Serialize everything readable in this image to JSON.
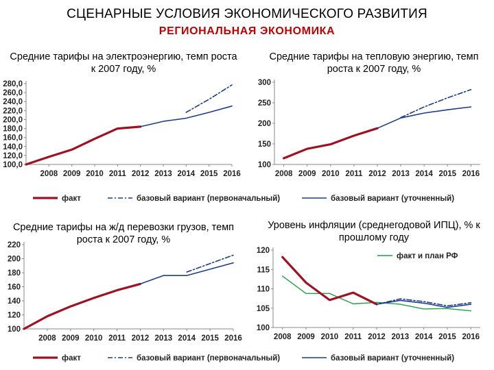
{
  "header": {
    "title": "СЦЕНАРНЫЕ УСЛОВИЯ ЭКОНОМИЧЕСКОГО РАЗВИТИЯ",
    "subtitle": "РЕГИОНАЛЬНАЯ  ЭКОНОМИКА"
  },
  "colors": {
    "fact": "#a01020",
    "base_initial": "#1a3a8c",
    "base_refined": "#1a3a8c",
    "fact_and_plan_rf": "#20a040",
    "title_red": "#c00000"
  },
  "legends": {
    "top": [
      "факт",
      "базовый вариант (первоначальный)",
      "базовый вариант (уточненный)"
    ],
    "bottom": [
      "факт",
      "базовый вариант (первоначальный)",
      "базовый вариант (уточненный)"
    ]
  },
  "chart_data": [
    {
      "id": "electricity",
      "type": "line",
      "title": "Средние тарифы на электроэнергию,  темп роста к 2007 году, %",
      "xlabel": "",
      "ylabel": "",
      "ylim": [
        100,
        280
      ],
      "yticks": [
        "100,0",
        "120,0",
        "140,0",
        "160,0",
        "180,0",
        "200,0",
        "220,0",
        "240,0",
        "260,0",
        "280,0"
      ],
      "x": [
        "2008",
        "2009",
        "2010",
        "2011",
        "2012",
        "2013",
        "2014",
        "2015",
        "2016"
      ],
      "series": [
        {
          "name": "факт",
          "style": "fact",
          "x": [
            2007,
            2008,
            2009,
            2010,
            2011,
            2012
          ],
          "values": [
            100,
            117,
            133,
            157,
            180,
            184
          ]
        },
        {
          "name": "базовый вариант (первоначальный)",
          "style": "base_initial",
          "x": [
            2014,
            2015,
            2016
          ],
          "values": [
            216,
            245,
            277
          ]
        },
        {
          "name": "базовый вариант (уточненный)",
          "style": "base_refined",
          "x": [
            2012,
            2013,
            2014,
            2015,
            2016
          ],
          "values": [
            184,
            196,
            203,
            216,
            230
          ]
        }
      ]
    },
    {
      "id": "heat",
      "type": "line",
      "title": "Средние тарифы на тепловую энергию, темп роста к 2007 году, %",
      "xlabel": "",
      "ylabel": "",
      "ylim": [
        100,
        300
      ],
      "yticks": [
        "100",
        "150",
        "200",
        "250",
        "300"
      ],
      "x": [
        "2008",
        "2009",
        "2010",
        "2011",
        "2012",
        "2013",
        "2014",
        "2015",
        "2016"
      ],
      "series": [
        {
          "name": "факт",
          "style": "fact",
          "x": [
            2008,
            2009,
            2010,
            2011,
            2012
          ],
          "values": [
            115,
            138,
            149,
            170,
            188
          ]
        },
        {
          "name": "базовый вариант (первоначальный)",
          "style": "base_initial",
          "x": [
            2013,
            2014,
            2015,
            2016
          ],
          "values": [
            214,
            240,
            262,
            282
          ]
        },
        {
          "name": "базовый вариант (уточненный)",
          "style": "base_refined",
          "x": [
            2012,
            2013,
            2014,
            2015,
            2016
          ],
          "values": [
            188,
            213,
            225,
            233,
            240
          ]
        }
      ]
    },
    {
      "id": "railway",
      "type": "line",
      "title": "Средние тарифы на ж/д перевозки грузов, темп роста к 2007 году, %",
      "xlabel": "",
      "ylabel": "",
      "ylim": [
        100,
        220
      ],
      "yticks": [
        "100",
        "120",
        "140",
        "160",
        "180",
        "200",
        "220"
      ],
      "x": [
        "2008",
        "2009",
        "2010",
        "2011",
        "2012",
        "2013",
        "2014",
        "2015",
        "2016"
      ],
      "series": [
        {
          "name": "факт",
          "style": "fact",
          "x": [
            2007,
            2008,
            2009,
            2010,
            2011,
            2012
          ],
          "values": [
            100,
            118,
            132,
            144,
            155,
            164
          ]
        },
        {
          "name": "базовый вариант (первоначальный)",
          "style": "base_initial",
          "x": [
            2014,
            2015,
            2016
          ],
          "values": [
            181,
            193,
            205
          ]
        },
        {
          "name": "базовый вариант (уточненный)",
          "style": "base_refined",
          "x": [
            2012,
            2013,
            2014,
            2015,
            2016
          ],
          "values": [
            164,
            176,
            176,
            185,
            194
          ]
        }
      ]
    },
    {
      "id": "inflation",
      "type": "line",
      "title": "Уровень инфляции (среднегодовой ИПЦ), % к прошлому году",
      "xlabel": "",
      "ylabel": "",
      "ylim": [
        100,
        120
      ],
      "yticks": [
        "100",
        "105",
        "110",
        "115",
        "120"
      ],
      "x": [
        "2008",
        "2009",
        "2010",
        "2011",
        "2012",
        "2013",
        "2014",
        "2015",
        "2016"
      ],
      "legend": {
        "entries": [
          "факт и план РФ"
        ],
        "position": "top-right"
      },
      "series": [
        {
          "name": "факт и план РФ",
          "style": "fact_and_plan_rf",
          "x": [
            2008,
            2009,
            2010,
            2011,
            2012,
            2013,
            2014,
            2015,
            2016
          ],
          "values": [
            113.3,
            108.8,
            108.8,
            106.1,
            106.5,
            106.0,
            104.8,
            104.9,
            104.3
          ]
        },
        {
          "name": "факт",
          "style": "fact",
          "x": [
            2008,
            2009,
            2010,
            2011,
            2012
          ],
          "values": [
            118.2,
            111.6,
            107.1,
            109.0,
            106.0
          ]
        },
        {
          "name": "базовый вариант (первоначальный)",
          "style": "base_initial",
          "x": [
            2012,
            2013,
            2014,
            2015,
            2016
          ],
          "values": [
            106.0,
            107.4,
            106.7,
            105.6,
            106.4
          ]
        },
        {
          "name": "базовый вариант (уточненный)",
          "style": "base_refined",
          "x": [
            2012,
            2013,
            2014,
            2015,
            2016
          ],
          "values": [
            106.0,
            107.0,
            106.3,
            105.2,
            106.0
          ]
        }
      ]
    }
  ]
}
